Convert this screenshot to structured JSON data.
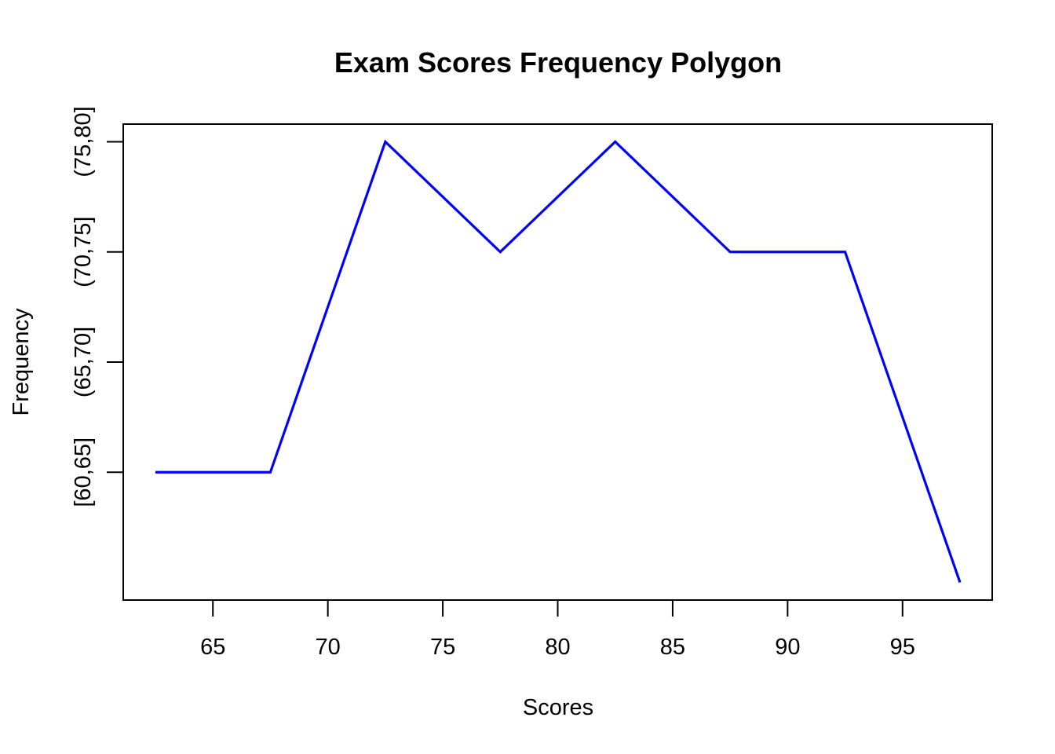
{
  "chart_data": {
    "type": "line",
    "title": "Exam Scores Frequency Polygon",
    "xlabel": "Scores",
    "ylabel": "Frequency",
    "xlim": [
      61.1,
      98.9
    ],
    "ylim": [
      0.84,
      5.16
    ],
    "x_ticks": [
      65,
      70,
      75,
      80,
      85,
      90,
      95
    ],
    "y_ticks": [
      {
        "value": 2,
        "label": "[60,65]"
      },
      {
        "value": 3,
        "label": "(65,70]"
      },
      {
        "value": 4,
        "label": "(70,75]"
      },
      {
        "value": 5,
        "label": "(75,80]"
      }
    ],
    "grid": false,
    "series": [
      {
        "color": "#0000ff",
        "x": [
          62.5,
          67.5,
          72.5,
          77.5,
          82.5,
          87.5,
          92.5,
          97.5
        ],
        "y": [
          2,
          2,
          5,
          4,
          5,
          4,
          4,
          1
        ]
      }
    ]
  }
}
